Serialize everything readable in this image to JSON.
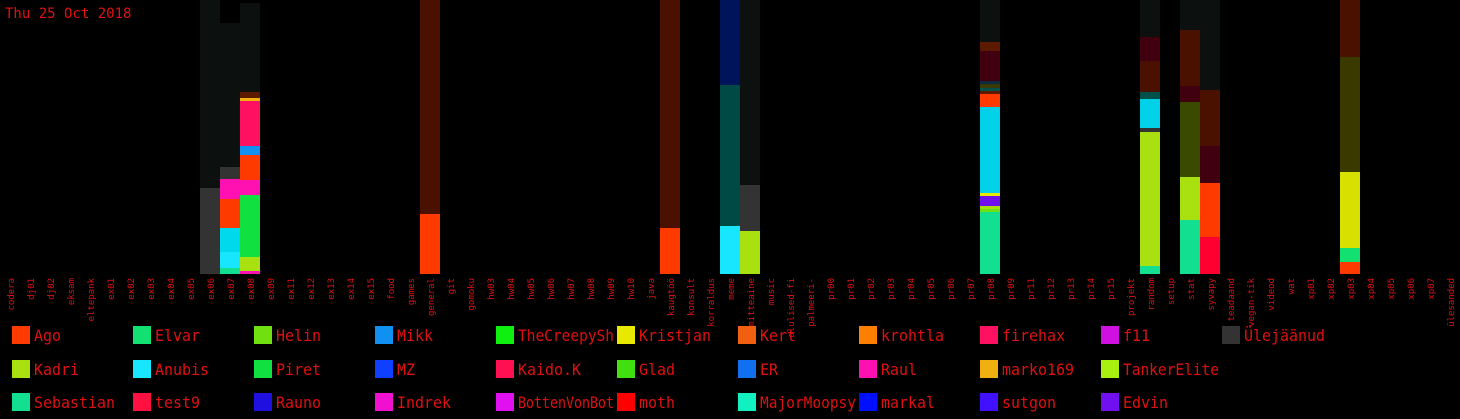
{
  "date": "Thu 25 Oct 2018",
  "chart_data": {
    "type": "bar",
    "stacked": true,
    "categories": [
      "codera",
      "dj01",
      "dj02",
      "eksam",
      "eltepank",
      "ex01",
      "ex02",
      "ex03",
      "ex04",
      "ex05",
      "ex06",
      "ex07",
      "ex08",
      "ex09",
      "ex11",
      "ex12",
      "ex13",
      "ex14",
      "ex15",
      "food",
      "games",
      "general",
      "git",
      "gomoku",
      "hw03",
      "hw04",
      "hw05",
      "hw06",
      "hw07",
      "hw08",
      "hw09",
      "hw10",
      "java",
      "kaugtöö",
      "konsult",
      "korraldus",
      "meme",
      "mitteaine",
      "music",
      "olulised-fi",
      "palmeeri-",
      "pr00",
      "pr01",
      "pr02",
      "pr03",
      "pr04",
      "pr05",
      "pr06",
      "pr07",
      "pr08",
      "pr09",
      "pr11",
      "pr12",
      "pr13",
      "pr14",
      "pr15",
      "projekt",
      "random",
      "setup",
      "stat",
      "syvapy",
      "teadaand",
      "vegan-tik",
      "videod",
      "wat",
      "xp01",
      "xp02",
      "xp03",
      "xp04",
      "xp05",
      "xp06",
      "xp07",
      "ülesanded"
    ],
    "bars": [
      {
        "category": "ex06",
        "segments": [
          {
            "name": "Ülejäänud",
            "value": 86,
            "color": "#333333"
          },
          {
            "name": "Ülejäänud",
            "value": 188,
            "color": "#0c100e"
          }
        ]
      },
      {
        "category": "ex07",
        "segments": [
          {
            "name": "Sebastian",
            "value": 6,
            "color": "#12e090"
          },
          {
            "name": "Anubis",
            "value": 16,
            "color": "#18e6ff"
          },
          {
            "name": "Anubis",
            "value": 24,
            "color": "#00d8ec"
          },
          {
            "name": "Ago",
            "value": 29,
            "color": "#ff3a00"
          },
          {
            "name": "Raul",
            "value": 20,
            "color": "#ff10b0"
          },
          {
            "name": "Ülejäänud",
            "value": 12,
            "color": "#333333"
          },
          {
            "name": "Ülejäänud",
            "value": 144,
            "color": "#0c100e"
          }
        ]
      },
      {
        "category": "ex08",
        "segments": [
          {
            "name": "Raul",
            "value": 3,
            "color": "#ff10b0"
          },
          {
            "name": "Kadri",
            "value": 14,
            "color": "#a8e010"
          },
          {
            "name": "Piret",
            "value": 62,
            "color": "#10e040"
          },
          {
            "name": "Raul",
            "value": 15,
            "color": "#ff10b0"
          },
          {
            "name": "Ago",
            "value": 25,
            "color": "#ff3a00"
          },
          {
            "name": "Mikk",
            "value": 9,
            "color": "#1090f0"
          },
          {
            "name": "firehax",
            "value": 45,
            "color": "#ff1060"
          },
          {
            "name": "marko169",
            "value": 3,
            "color": "#f0b010"
          },
          {
            "name": "Ülejäänud",
            "value": 6,
            "color": "#5c1a00"
          },
          {
            "name": "Ülejäänud",
            "value": 89,
            "color": "#0c100e"
          }
        ]
      },
      {
        "category": "general",
        "segments": [
          {
            "name": "Ago",
            "value": 60,
            "color": "#ff3a00"
          },
          {
            "name": "Ülejäänud",
            "value": 214,
            "color": "#4a1000"
          }
        ]
      },
      {
        "category": "kaugtöö",
        "segments": [
          {
            "name": "Ago",
            "value": 46,
            "color": "#ff3a00"
          },
          {
            "name": "Ülejäänud",
            "value": 228,
            "color": "#4a1000"
          }
        ]
      },
      {
        "category": "meme",
        "segments": [
          {
            "name": "Anubis",
            "value": 48,
            "color": "#18e6ff"
          },
          {
            "name": "Ülejäänud",
            "value": 141,
            "color": "#004a46"
          },
          {
            "name": "Ülejäänud",
            "value": 85,
            "color": "#00145c"
          }
        ]
      },
      {
        "category": "mitteaine",
        "segments": [
          {
            "name": "Kadri",
            "value": 43,
            "color": "#a8e010"
          },
          {
            "name": "Ülejäänud",
            "value": 46,
            "color": "#333333"
          },
          {
            "name": "Ülejäänud",
            "value": 185,
            "color": "#0c100e"
          }
        ]
      },
      {
        "category": "pr08",
        "segments": [
          {
            "name": "MajorMoopsy",
            "value": 62,
            "color": "#12e090"
          },
          {
            "name": "Helin",
            "value": 3,
            "color": "#70e010"
          },
          {
            "name": "TankerElite",
            "value": 3,
            "color": "#a8e010"
          },
          {
            "name": "Edvin",
            "value": 10,
            "color": "#7010f0"
          },
          {
            "name": "Kristjan",
            "value": 3,
            "color": "#e8e800"
          },
          {
            "name": "Anubis",
            "value": 86,
            "color": "#00d0e8"
          },
          {
            "name": "Ago",
            "value": 13,
            "color": "#ff3a00"
          },
          {
            "name": "Ülejäänud",
            "value": 3,
            "color": "#5c1a00"
          },
          {
            "name": "Ülejäänud",
            "value": 3,
            "color": "#00504a"
          },
          {
            "name": "Ülejäänud",
            "value": 4,
            "color": "#3a3a00"
          },
          {
            "name": "Ülejäänud",
            "value": 3,
            "color": "#0c2a40"
          },
          {
            "name": "Ülejäänud",
            "value": 30,
            "color": "#400010"
          },
          {
            "name": "Ülejäänud",
            "value": 9,
            "color": "#5c1a00"
          },
          {
            "name": "Ülejäänud",
            "value": 42,
            "color": "#0c100e"
          }
        ]
      },
      {
        "category": "random",
        "segments": [
          {
            "name": "MajorMoopsy",
            "value": 8,
            "color": "#12e090"
          },
          {
            "name": "TankerElite",
            "value": 134,
            "color": "#a8e010"
          },
          {
            "name": "Ülejäänud",
            "value": 4,
            "color": "#333333"
          },
          {
            "name": "Anubis",
            "value": 29,
            "color": "#00d0e8"
          },
          {
            "name": "Ülejäänud",
            "value": 7,
            "color": "#00504a"
          },
          {
            "name": "Ülejäänud",
            "value": 31,
            "color": "#4a1000"
          },
          {
            "name": "Ülejäänud",
            "value": 24,
            "color": "#400010"
          },
          {
            "name": "Ülejäänud",
            "value": 37,
            "color": "#0c100e"
          }
        ]
      },
      {
        "category": "stat",
        "segments": [
          {
            "name": "MajorMoopsy",
            "value": 54,
            "color": "#12e090"
          },
          {
            "name": "Kadri",
            "value": 43,
            "color": "#a8e010"
          },
          {
            "name": "Ülejäänud",
            "value": 75,
            "color": "#3a4a00"
          },
          {
            "name": "Ülejäänud",
            "value": 16,
            "color": "#400010"
          },
          {
            "name": "Ülejäänud",
            "value": 56,
            "color": "#4a1000"
          },
          {
            "name": "Ülejäänud",
            "value": 30,
            "color": "#0c100e"
          }
        ]
      },
      {
        "category": "syvapy",
        "segments": [
          {
            "name": "test9",
            "value": 37,
            "color": "#ff0030"
          },
          {
            "name": "Ago",
            "value": 54,
            "color": "#ff3a00"
          },
          {
            "name": "Ülejäänud",
            "value": 37,
            "color": "#400010"
          },
          {
            "name": "Ülejäänud",
            "value": 56,
            "color": "#4a1000"
          },
          {
            "name": "Ülejäänud",
            "value": 90,
            "color": "#0c100e"
          }
        ]
      },
      {
        "category": "xp03",
        "segments": [
          {
            "name": "Ago",
            "value": 12,
            "color": "#ff3a00"
          },
          {
            "name": "Elvar",
            "value": 14,
            "color": "#12e070"
          },
          {
            "name": "Kristjan",
            "value": 76,
            "color": "#d8e000"
          },
          {
            "name": "Ülejäänud",
            "value": 115,
            "color": "#3a3a00"
          },
          {
            "name": "Ülejäänud",
            "value": 57,
            "color": "#4a1000"
          }
        ]
      }
    ],
    "legend": [
      {
        "name": "Ago",
        "color": "#ff3a00"
      },
      {
        "name": "Elvar",
        "color": "#12e070"
      },
      {
        "name": "Helin",
        "color": "#70e010"
      },
      {
        "name": "Mikk",
        "color": "#1090f0"
      },
      {
        "name": "TheCreepySh",
        "color": "#10f010"
      },
      {
        "name": "Kristjan",
        "color": "#e8e800"
      },
      {
        "name": "Kert",
        "color": "#f06010"
      },
      {
        "name": "krohtla",
        "color": "#ff8000"
      },
      {
        "name": "firehax",
        "color": "#ff1060"
      },
      {
        "name": "f11",
        "color": "#d010e0"
      },
      {
        "name": "Ülejäänud",
        "color": "#333333"
      },
      {
        "name": "Kadri",
        "color": "#a8e010"
      },
      {
        "name": "Anubis",
        "color": "#18e6ff"
      },
      {
        "name": "Piret",
        "color": "#10e040"
      },
      {
        "name": "MZ",
        "color": "#1040ff"
      },
      {
        "name": "Kaido.K",
        "color": "#ff1050"
      },
      {
        "name": "Glad",
        "color": "#40e010"
      },
      {
        "name": "ER",
        "color": "#1070f0"
      },
      {
        "name": "Raul",
        "color": "#ff10b0"
      },
      {
        "name": "marko169",
        "color": "#f0b010"
      },
      {
        "name": "TankerElite",
        "color": "#a8f010"
      },
      {
        "name": "Sebastian",
        "color": "#12e090"
      },
      {
        "name": "test9",
        "color": "#ff1040"
      },
      {
        "name": "Rauno",
        "color": "#2010e0"
      },
      {
        "name": "Indrek",
        "color": "#f010d0"
      },
      {
        "name": "BottenVonBot",
        "color": "#e010f0"
      },
      {
        "name": "moth",
        "color": "#ff0000"
      },
      {
        "name": "MajorMoopsy",
        "color": "#10f0c0"
      },
      {
        "name": "markal",
        "color": "#0010ff"
      },
      {
        "name": "sutgon",
        "color": "#4010ff"
      },
      {
        "name": "Edvin",
        "color": "#7010f0"
      }
    ]
  }
}
